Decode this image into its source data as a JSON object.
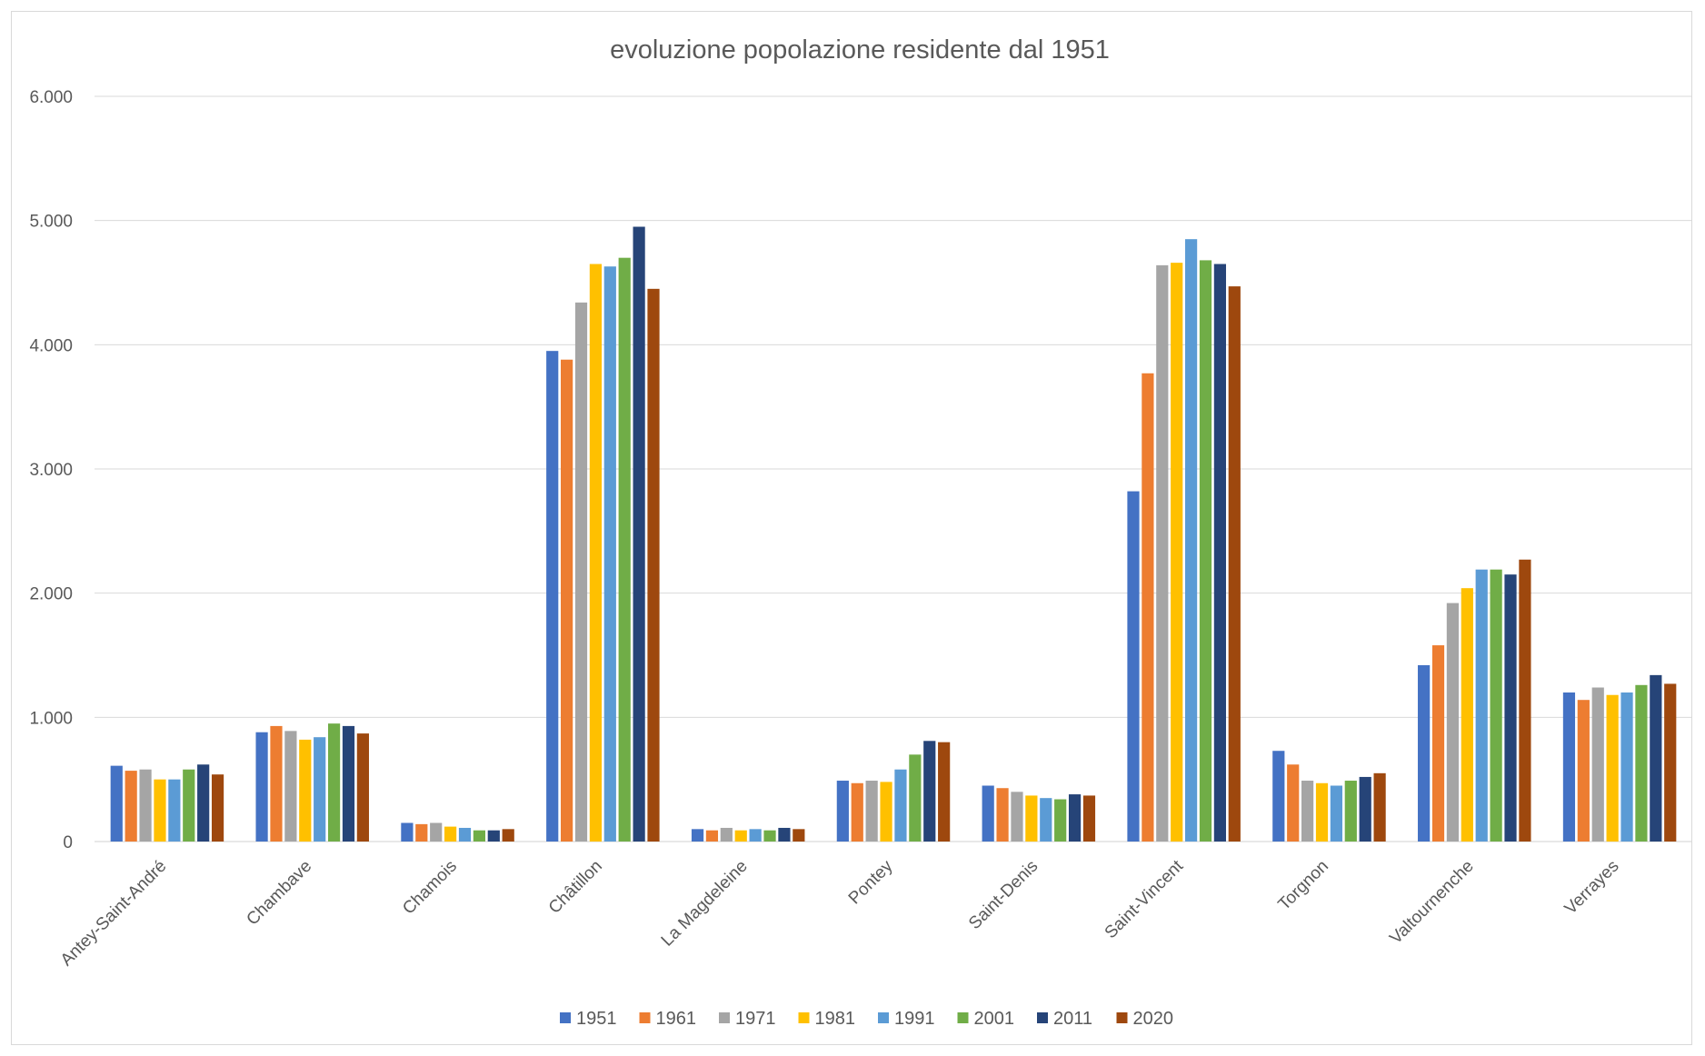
{
  "chart_data": {
    "type": "bar",
    "title": "evoluzione popolazione residente dal 1951",
    "xlabel": "",
    "ylabel": "",
    "ylim": [
      0,
      6000
    ],
    "yticks": [
      0,
      1000,
      2000,
      3000,
      4000,
      5000,
      6000
    ],
    "ytick_labels": [
      "0",
      "1.000",
      "2.000",
      "3.000",
      "4.000",
      "5.000",
      "6.000"
    ],
    "grid": true,
    "legend_position": "bottom",
    "categories": [
      "Antey-Saint-André",
      "Chambave",
      "Chamois",
      "Châtillon",
      "La Magdeleine",
      "Pontey",
      "Saint-Denis",
      "Saint-Vincent",
      "Torgnon",
      "Valtournenche",
      "Verrayes"
    ],
    "series": [
      {
        "name": "1951",
        "color": "#4472c4",
        "values": [
          610,
          880,
          150,
          3950,
          100,
          490,
          450,
          2820,
          730,
          1420,
          1200
        ]
      },
      {
        "name": "1961",
        "color": "#ed7d31",
        "values": [
          570,
          930,
          140,
          3880,
          90,
          470,
          430,
          3770,
          620,
          1580,
          1140
        ]
      },
      {
        "name": "1971",
        "color": "#a5a5a5",
        "values": [
          580,
          890,
          150,
          4340,
          110,
          490,
          400,
          4640,
          490,
          1920,
          1240
        ]
      },
      {
        "name": "1981",
        "color": "#ffc000",
        "values": [
          500,
          820,
          120,
          4650,
          90,
          480,
          370,
          4660,
          470,
          2040,
          1180
        ]
      },
      {
        "name": "1991",
        "color": "#5b9bd5",
        "values": [
          500,
          840,
          110,
          4630,
          100,
          580,
          350,
          4850,
          450,
          2190,
          1200
        ]
      },
      {
        "name": "2001",
        "color": "#70ad47",
        "values": [
          580,
          950,
          90,
          4700,
          90,
          700,
          340,
          4680,
          490,
          2190,
          1260
        ]
      },
      {
        "name": "2011",
        "color": "#264478",
        "values": [
          620,
          930,
          90,
          4950,
          110,
          810,
          380,
          4650,
          520,
          2150,
          1340
        ]
      },
      {
        "name": "2020",
        "color": "#9e480e",
        "values": [
          540,
          870,
          100,
          4450,
          100,
          800,
          370,
          4470,
          550,
          2270,
          1270
        ]
      }
    ]
  }
}
